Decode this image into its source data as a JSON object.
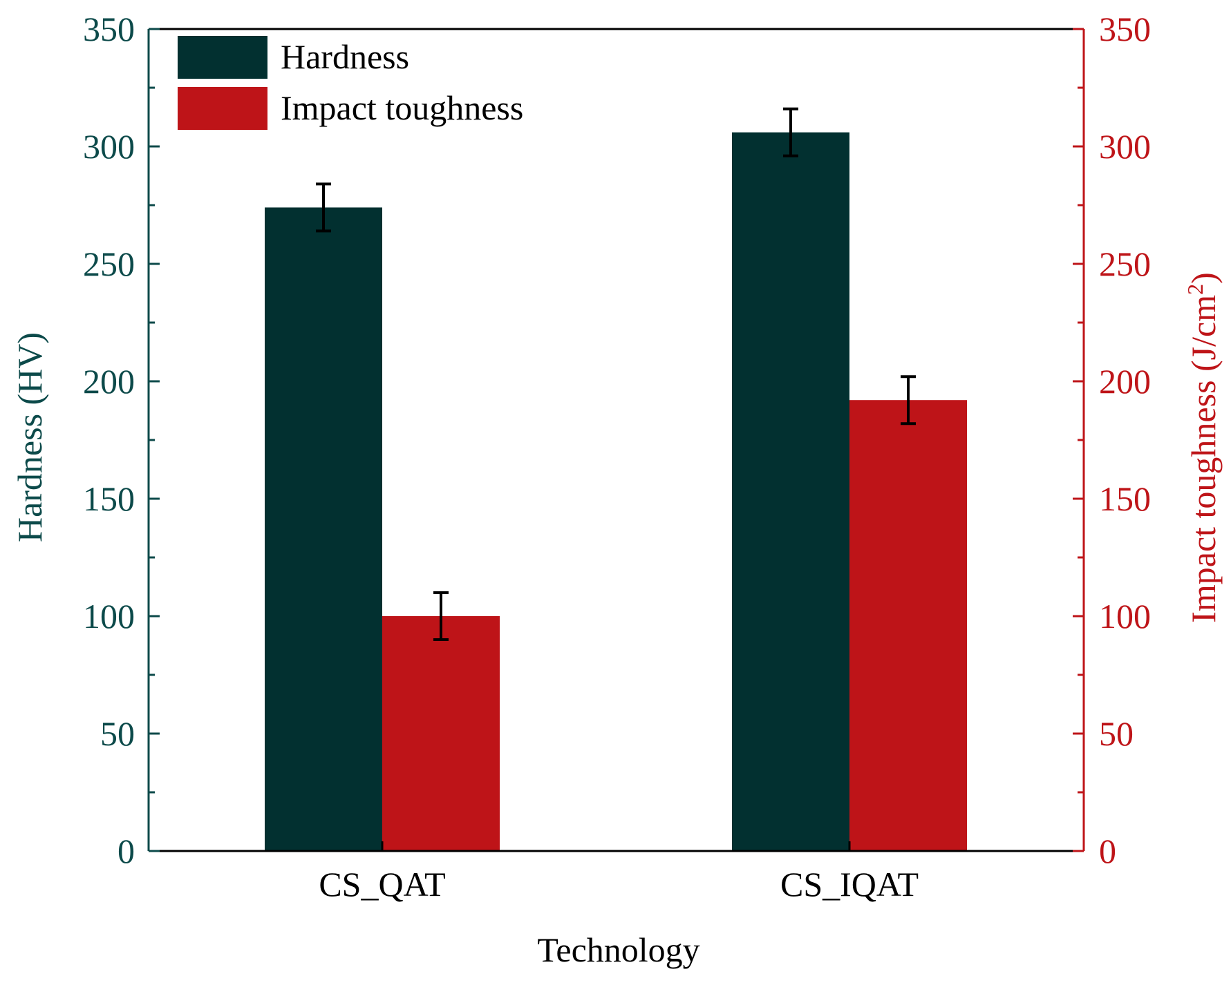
{
  "chart_data": {
    "type": "bar",
    "categories": [
      "CS_QAT",
      "CS_IQAT"
    ],
    "series": [
      {
        "name": "Hardness",
        "axis": "left",
        "values": [
          274,
          306
        ],
        "errors": [
          10,
          10
        ],
        "color": "#023030"
      },
      {
        "name": "Impact toughness",
        "axis": "right",
        "values": [
          100,
          192
        ],
        "errors": [
          10,
          10
        ],
        "color": "#be1418"
      }
    ],
    "xlabel": "Technology",
    "ylabel_left": "Hardness (HV)",
    "ylabel_right_main": "Impact toughness (J/cm",
    "ylabel_right_sup": "2",
    "ylabel_right_close": ")",
    "ylim_left": [
      0,
      350
    ],
    "ylim_right": [
      0,
      350
    ],
    "yticks_left": [
      "0",
      "50",
      "100",
      "150",
      "200",
      "250",
      "300",
      "350"
    ],
    "yticks_right": [
      "0",
      "50",
      "100",
      "150",
      "200",
      "250",
      "300",
      "350"
    ],
    "legend_position": "top-left",
    "grid": false,
    "left_axis_color": "#0c4a4a",
    "right_axis_color": "#be1418"
  }
}
